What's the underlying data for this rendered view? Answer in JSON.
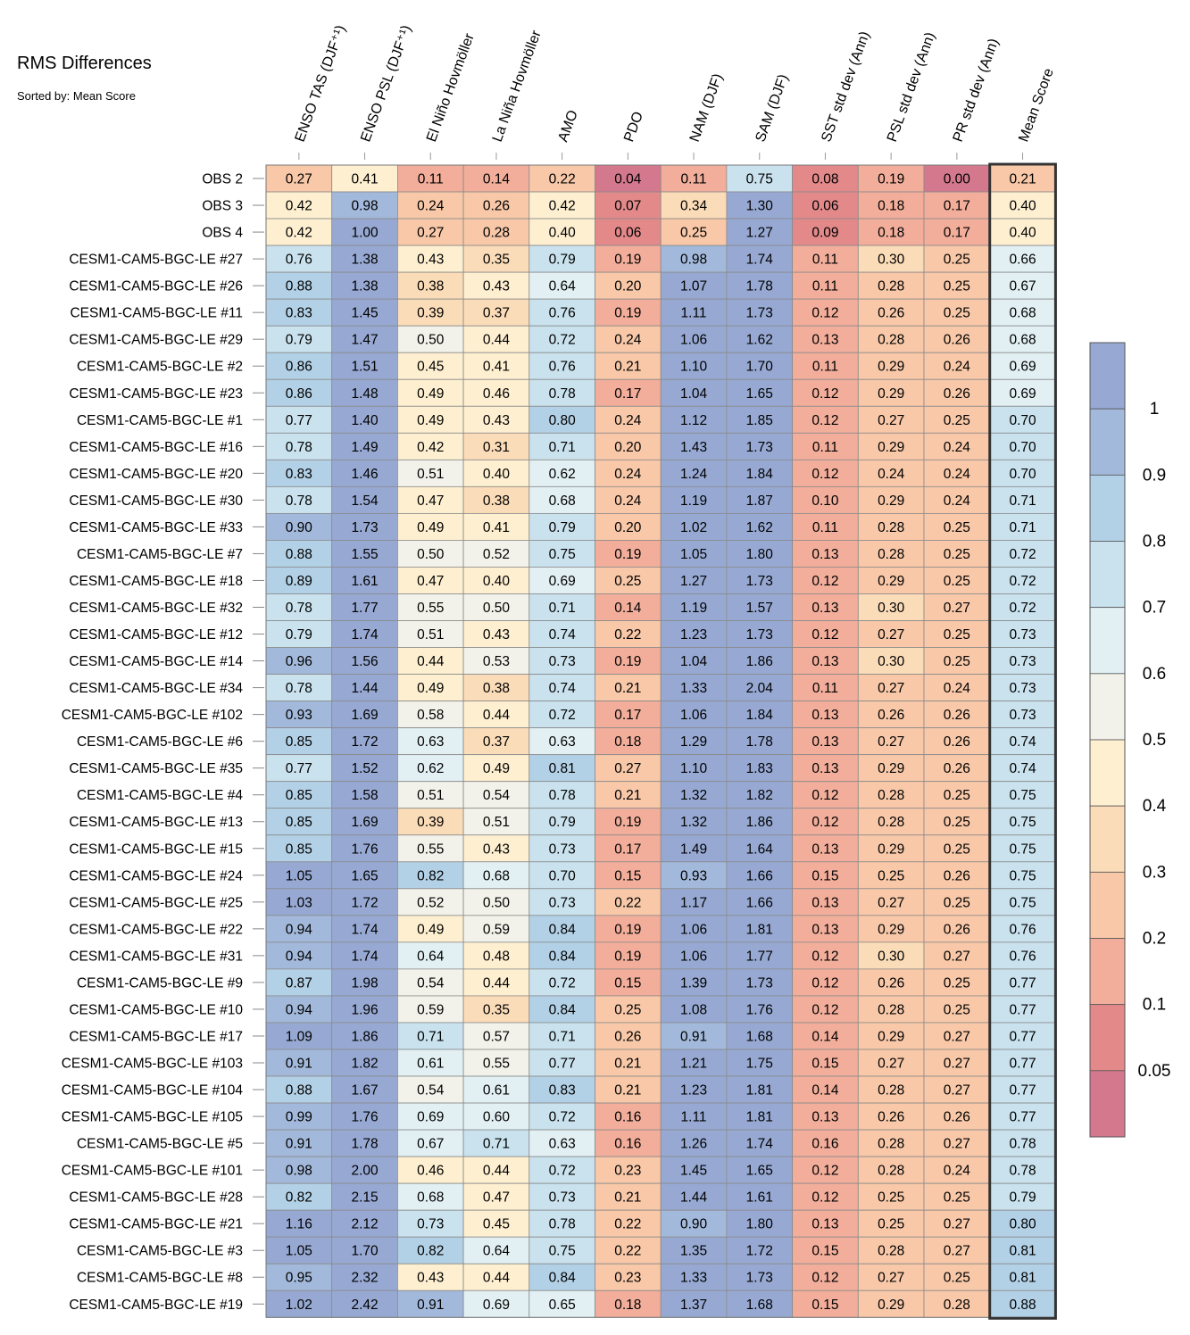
{
  "title": "RMS Differences",
  "subtitle": "Sorted by: Mean Score",
  "chart_data": {
    "type": "heatmap",
    "columns": [
      "ENSO TAS (DJF⁺¹)",
      "ENSO PSL (DJF⁺¹)",
      "El Niño Hovmöller",
      "La Niña Hovmöller",
      "AMO",
      "PDO",
      "NAM (DJF)",
      "SAM (DJF)",
      "SST std dev (Ann)",
      "PSL std dev (Ann)",
      "PR std dev (Ann)",
      "Mean Score"
    ],
    "rows": [
      {
        "name": "OBS 2",
        "values": [
          "0.27",
          "0.41",
          "0.11",
          "0.14",
          "0.22",
          "0.04",
          "0.11",
          "0.75",
          "0.08",
          "0.19",
          "0.00",
          "0.21"
        ]
      },
      {
        "name": "OBS 3",
        "values": [
          "0.42",
          "0.98",
          "0.24",
          "0.26",
          "0.42",
          "0.07",
          "0.34",
          "1.30",
          "0.06",
          "0.18",
          "0.17",
          "0.40"
        ]
      },
      {
        "name": "OBS 4",
        "values": [
          "0.42",
          "1.00",
          "0.27",
          "0.28",
          "0.40",
          "0.06",
          "0.25",
          "1.27",
          "0.09",
          "0.18",
          "0.17",
          "0.40"
        ]
      },
      {
        "name": "CESM1-CAM5-BGC-LE #27",
        "values": [
          "0.76",
          "1.38",
          "0.43",
          "0.35",
          "0.79",
          "0.19",
          "0.98",
          "1.74",
          "0.11",
          "0.30",
          "0.25",
          "0.66"
        ]
      },
      {
        "name": "CESM1-CAM5-BGC-LE #26",
        "values": [
          "0.88",
          "1.38",
          "0.38",
          "0.43",
          "0.64",
          "0.20",
          "1.07",
          "1.78",
          "0.11",
          "0.28",
          "0.25",
          "0.67"
        ]
      },
      {
        "name": "CESM1-CAM5-BGC-LE #11",
        "values": [
          "0.83",
          "1.45",
          "0.39",
          "0.37",
          "0.76",
          "0.19",
          "1.11",
          "1.73",
          "0.12",
          "0.26",
          "0.25",
          "0.68"
        ]
      },
      {
        "name": "CESM1-CAM5-BGC-LE #29",
        "values": [
          "0.79",
          "1.47",
          "0.50",
          "0.44",
          "0.72",
          "0.24",
          "1.06",
          "1.62",
          "0.13",
          "0.28",
          "0.26",
          "0.68"
        ]
      },
      {
        "name": "CESM1-CAM5-BGC-LE #2",
        "values": [
          "0.86",
          "1.51",
          "0.45",
          "0.41",
          "0.76",
          "0.21",
          "1.10",
          "1.70",
          "0.11",
          "0.29",
          "0.24",
          "0.69"
        ]
      },
      {
        "name": "CESM1-CAM5-BGC-LE #23",
        "values": [
          "0.86",
          "1.48",
          "0.49",
          "0.46",
          "0.78",
          "0.17",
          "1.04",
          "1.65",
          "0.12",
          "0.29",
          "0.26",
          "0.69"
        ]
      },
      {
        "name": "CESM1-CAM5-BGC-LE #1",
        "values": [
          "0.77",
          "1.40",
          "0.49",
          "0.43",
          "0.80",
          "0.24",
          "1.12",
          "1.85",
          "0.12",
          "0.27",
          "0.25",
          "0.70"
        ]
      },
      {
        "name": "CESM1-CAM5-BGC-LE #16",
        "values": [
          "0.78",
          "1.49",
          "0.42",
          "0.31",
          "0.71",
          "0.20",
          "1.43",
          "1.73",
          "0.11",
          "0.29",
          "0.24",
          "0.70"
        ]
      },
      {
        "name": "CESM1-CAM5-BGC-LE #20",
        "values": [
          "0.83",
          "1.46",
          "0.51",
          "0.40",
          "0.62",
          "0.24",
          "1.24",
          "1.84",
          "0.12",
          "0.24",
          "0.24",
          "0.70"
        ]
      },
      {
        "name": "CESM1-CAM5-BGC-LE #30",
        "values": [
          "0.78",
          "1.54",
          "0.47",
          "0.38",
          "0.68",
          "0.24",
          "1.19",
          "1.87",
          "0.10",
          "0.29",
          "0.24",
          "0.71"
        ]
      },
      {
        "name": "CESM1-CAM5-BGC-LE #33",
        "values": [
          "0.90",
          "1.73",
          "0.49",
          "0.41",
          "0.79",
          "0.20",
          "1.02",
          "1.62",
          "0.11",
          "0.28",
          "0.25",
          "0.71"
        ]
      },
      {
        "name": "CESM1-CAM5-BGC-LE #7",
        "values": [
          "0.88",
          "1.55",
          "0.50",
          "0.52",
          "0.75",
          "0.19",
          "1.05",
          "1.80",
          "0.13",
          "0.28",
          "0.25",
          "0.72"
        ]
      },
      {
        "name": "CESM1-CAM5-BGC-LE #18",
        "values": [
          "0.89",
          "1.61",
          "0.47",
          "0.40",
          "0.69",
          "0.25",
          "1.27",
          "1.73",
          "0.12",
          "0.29",
          "0.25",
          "0.72"
        ]
      },
      {
        "name": "CESM1-CAM5-BGC-LE #32",
        "values": [
          "0.78",
          "1.77",
          "0.55",
          "0.50",
          "0.71",
          "0.14",
          "1.19",
          "1.57",
          "0.13",
          "0.30",
          "0.27",
          "0.72"
        ]
      },
      {
        "name": "CESM1-CAM5-BGC-LE #12",
        "values": [
          "0.79",
          "1.74",
          "0.51",
          "0.43",
          "0.74",
          "0.22",
          "1.23",
          "1.73",
          "0.12",
          "0.27",
          "0.25",
          "0.73"
        ]
      },
      {
        "name": "CESM1-CAM5-BGC-LE #14",
        "values": [
          "0.96",
          "1.56",
          "0.44",
          "0.53",
          "0.73",
          "0.19",
          "1.04",
          "1.86",
          "0.13",
          "0.30",
          "0.25",
          "0.73"
        ]
      },
      {
        "name": "CESM1-CAM5-BGC-LE #34",
        "values": [
          "0.78",
          "1.44",
          "0.49",
          "0.38",
          "0.74",
          "0.21",
          "1.33",
          "2.04",
          "0.11",
          "0.27",
          "0.24",
          "0.73"
        ]
      },
      {
        "name": "CESM1-CAM5-BGC-LE #102",
        "values": [
          "0.93",
          "1.69",
          "0.58",
          "0.44",
          "0.72",
          "0.17",
          "1.06",
          "1.84",
          "0.13",
          "0.26",
          "0.26",
          "0.73"
        ]
      },
      {
        "name": "CESM1-CAM5-BGC-LE #6",
        "values": [
          "0.85",
          "1.72",
          "0.63",
          "0.37",
          "0.63",
          "0.18",
          "1.29",
          "1.78",
          "0.13",
          "0.27",
          "0.26",
          "0.74"
        ]
      },
      {
        "name": "CESM1-CAM5-BGC-LE #35",
        "values": [
          "0.77",
          "1.52",
          "0.62",
          "0.49",
          "0.81",
          "0.27",
          "1.10",
          "1.83",
          "0.13",
          "0.29",
          "0.26",
          "0.74"
        ]
      },
      {
        "name": "CESM1-CAM5-BGC-LE #4",
        "values": [
          "0.85",
          "1.58",
          "0.51",
          "0.54",
          "0.78",
          "0.21",
          "1.32",
          "1.82",
          "0.12",
          "0.28",
          "0.25",
          "0.75"
        ]
      },
      {
        "name": "CESM1-CAM5-BGC-LE #13",
        "values": [
          "0.85",
          "1.69",
          "0.39",
          "0.51",
          "0.79",
          "0.19",
          "1.32",
          "1.86",
          "0.12",
          "0.28",
          "0.25",
          "0.75"
        ]
      },
      {
        "name": "CESM1-CAM5-BGC-LE #15",
        "values": [
          "0.85",
          "1.76",
          "0.55",
          "0.43",
          "0.73",
          "0.17",
          "1.49",
          "1.64",
          "0.13",
          "0.29",
          "0.25",
          "0.75"
        ]
      },
      {
        "name": "CESM1-CAM5-BGC-LE #24",
        "values": [
          "1.05",
          "1.65",
          "0.82",
          "0.68",
          "0.70",
          "0.15",
          "0.93",
          "1.66",
          "0.15",
          "0.25",
          "0.26",
          "0.75"
        ]
      },
      {
        "name": "CESM1-CAM5-BGC-LE #25",
        "values": [
          "1.03",
          "1.72",
          "0.52",
          "0.50",
          "0.73",
          "0.22",
          "1.17",
          "1.66",
          "0.13",
          "0.27",
          "0.25",
          "0.75"
        ]
      },
      {
        "name": "CESM1-CAM5-BGC-LE #22",
        "values": [
          "0.94",
          "1.74",
          "0.49",
          "0.59",
          "0.84",
          "0.19",
          "1.06",
          "1.81",
          "0.13",
          "0.29",
          "0.26",
          "0.76"
        ]
      },
      {
        "name": "CESM1-CAM5-BGC-LE #31",
        "values": [
          "0.94",
          "1.74",
          "0.64",
          "0.48",
          "0.84",
          "0.19",
          "1.06",
          "1.77",
          "0.12",
          "0.30",
          "0.27",
          "0.76"
        ]
      },
      {
        "name": "CESM1-CAM5-BGC-LE #9",
        "values": [
          "0.87",
          "1.98",
          "0.54",
          "0.44",
          "0.72",
          "0.15",
          "1.39",
          "1.73",
          "0.12",
          "0.26",
          "0.25",
          "0.77"
        ]
      },
      {
        "name": "CESM1-CAM5-BGC-LE #10",
        "values": [
          "0.94",
          "1.96",
          "0.59",
          "0.35",
          "0.84",
          "0.25",
          "1.08",
          "1.76",
          "0.12",
          "0.28",
          "0.25",
          "0.77"
        ]
      },
      {
        "name": "CESM1-CAM5-BGC-LE #17",
        "values": [
          "1.09",
          "1.86",
          "0.71",
          "0.57",
          "0.71",
          "0.26",
          "0.91",
          "1.68",
          "0.14",
          "0.29",
          "0.27",
          "0.77"
        ]
      },
      {
        "name": "CESM1-CAM5-BGC-LE #103",
        "values": [
          "0.91",
          "1.82",
          "0.61",
          "0.55",
          "0.77",
          "0.21",
          "1.21",
          "1.75",
          "0.15",
          "0.27",
          "0.27",
          "0.77"
        ]
      },
      {
        "name": "CESM1-CAM5-BGC-LE #104",
        "values": [
          "0.88",
          "1.67",
          "0.54",
          "0.61",
          "0.83",
          "0.21",
          "1.23",
          "1.81",
          "0.14",
          "0.28",
          "0.27",
          "0.77"
        ]
      },
      {
        "name": "CESM1-CAM5-BGC-LE #105",
        "values": [
          "0.99",
          "1.76",
          "0.69",
          "0.60",
          "0.72",
          "0.16",
          "1.11",
          "1.81",
          "0.13",
          "0.26",
          "0.26",
          "0.77"
        ]
      },
      {
        "name": "CESM1-CAM5-BGC-LE #5",
        "values": [
          "0.91",
          "1.78",
          "0.67",
          "0.71",
          "0.63",
          "0.16",
          "1.26",
          "1.74",
          "0.16",
          "0.28",
          "0.27",
          "0.78"
        ]
      },
      {
        "name": "CESM1-CAM5-BGC-LE #101",
        "values": [
          "0.98",
          "2.00",
          "0.46",
          "0.44",
          "0.72",
          "0.23",
          "1.45",
          "1.65",
          "0.12",
          "0.28",
          "0.24",
          "0.78"
        ]
      },
      {
        "name": "CESM1-CAM5-BGC-LE #28",
        "values": [
          "0.82",
          "2.15",
          "0.68",
          "0.47",
          "0.73",
          "0.21",
          "1.44",
          "1.61",
          "0.12",
          "0.25",
          "0.25",
          "0.79"
        ]
      },
      {
        "name": "CESM1-CAM5-BGC-LE #21",
        "values": [
          "1.16",
          "2.12",
          "0.73",
          "0.45",
          "0.78",
          "0.22",
          "0.90",
          "1.80",
          "0.13",
          "0.25",
          "0.27",
          "0.80"
        ]
      },
      {
        "name": "CESM1-CAM5-BGC-LE #3",
        "values": [
          "1.05",
          "1.70",
          "0.82",
          "0.64",
          "0.75",
          "0.22",
          "1.35",
          "1.72",
          "0.15",
          "0.28",
          "0.27",
          "0.81"
        ]
      },
      {
        "name": "CESM1-CAM5-BGC-LE #8",
        "values": [
          "0.95",
          "2.32",
          "0.43",
          "0.44",
          "0.84",
          "0.23",
          "1.33",
          "1.73",
          "0.12",
          "0.27",
          "0.25",
          "0.81"
        ]
      },
      {
        "name": "CESM1-CAM5-BGC-LE #19",
        "values": [
          "1.02",
          "2.42",
          "0.91",
          "0.69",
          "0.65",
          "0.18",
          "1.37",
          "1.68",
          "0.15",
          "0.29",
          "0.28",
          "0.88"
        ]
      }
    ],
    "colorbar": {
      "tick_labels": [
        "0.05",
        "0.1",
        "0.2",
        "0.3",
        "0.4",
        "0.5",
        "0.6",
        "0.7",
        "0.8",
        "0.9",
        "1"
      ],
      "levels": [
        0.05,
        0.1,
        0.2,
        0.3,
        0.4,
        0.5,
        0.6,
        0.7,
        0.8,
        0.9,
        1
      ],
      "colors": [
        "#d4788e",
        "#e3898a",
        "#f2ae9b",
        "#f8c8a8",
        "#fbdcb8",
        "#fdefd0",
        "#f2f2ea",
        "#e2f0f4",
        "#c9e2ee",
        "#b3d1e6",
        "#a3b9db",
        "#97a9d3"
      ]
    }
  }
}
